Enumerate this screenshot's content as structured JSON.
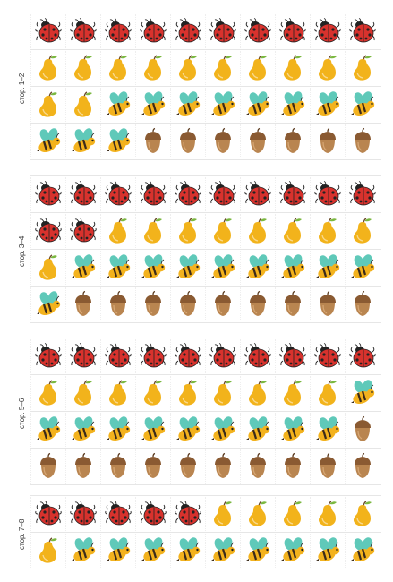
{
  "colors": {
    "ladybug": "#d8322d",
    "pear": "#f2b31b",
    "bee_body": "#f3b21d",
    "bee_wing": "#5fc9b9",
    "acorn": "#b98550",
    "acorn_cap": "#8a5a32"
  },
  "blocks": [
    {
      "label": "стор. 1–2",
      "rows": [
        [
          "ladybug-icon",
          "ladybug-icon",
          "ladybug-icon",
          "ladybug-icon",
          "ladybug-icon",
          "ladybug-icon",
          "ladybug-icon",
          "ladybug-icon",
          "ladybug-icon",
          "ladybug-icon"
        ],
        [
          "pear-icon",
          "pear-icon",
          "pear-icon",
          "pear-icon",
          "pear-icon",
          "pear-icon",
          "pear-icon",
          "pear-icon",
          "pear-icon",
          "pear-icon"
        ],
        [
          "pear-icon",
          "pear-icon",
          "bee-icon",
          "bee-icon",
          "bee-icon",
          "bee-icon",
          "bee-icon",
          "bee-icon",
          "bee-icon",
          "bee-icon"
        ],
        [
          "bee-icon",
          "bee-icon",
          "bee-icon",
          "acorn-icon",
          "acorn-icon",
          "acorn-icon",
          "acorn-icon",
          "acorn-icon",
          "acorn-icon",
          "acorn-icon"
        ]
      ]
    },
    {
      "label": "стор. 3–4",
      "rows": [
        [
          "ladybug-icon",
          "ladybug-icon",
          "ladybug-icon",
          "ladybug-icon",
          "ladybug-icon",
          "ladybug-icon",
          "ladybug-icon",
          "ladybug-icon",
          "ladybug-icon",
          "ladybug-icon"
        ],
        [
          "ladybug-icon",
          "ladybug-icon",
          "pear-icon",
          "pear-icon",
          "pear-icon",
          "pear-icon",
          "pear-icon",
          "pear-icon",
          "pear-icon",
          "pear-icon"
        ],
        [
          "pear-icon",
          "bee-icon",
          "bee-icon",
          "bee-icon",
          "bee-icon",
          "bee-icon",
          "bee-icon",
          "bee-icon",
          "bee-icon",
          "bee-icon"
        ],
        [
          "bee-icon",
          "acorn-icon",
          "acorn-icon",
          "acorn-icon",
          "acorn-icon",
          "acorn-icon",
          "acorn-icon",
          "acorn-icon",
          "acorn-icon",
          "acorn-icon"
        ]
      ]
    },
    {
      "label": "стор. 5–6",
      "rows": [
        [
          "ladybug-icon",
          "ladybug-icon",
          "ladybug-icon",
          "ladybug-icon",
          "ladybug-icon",
          "ladybug-icon",
          "ladybug-icon",
          "ladybug-icon",
          "ladybug-icon",
          "ladybug-icon"
        ],
        [
          "pear-icon",
          "pear-icon",
          "pear-icon",
          "pear-icon",
          "pear-icon",
          "pear-icon",
          "pear-icon",
          "pear-icon",
          "pear-icon",
          "bee-icon"
        ],
        [
          "bee-icon",
          "bee-icon",
          "bee-icon",
          "bee-icon",
          "bee-icon",
          "bee-icon",
          "bee-icon",
          "bee-icon",
          "bee-icon",
          "acorn-icon"
        ],
        [
          "acorn-icon",
          "acorn-icon",
          "acorn-icon",
          "acorn-icon",
          "acorn-icon",
          "acorn-icon",
          "acorn-icon",
          "acorn-icon",
          "acorn-icon",
          "acorn-icon"
        ]
      ]
    },
    {
      "label": "стор. 7–8",
      "rows": [
        [
          "ladybug-icon",
          "ladybug-icon",
          "ladybug-icon",
          "ladybug-icon",
          "ladybug-icon",
          "pear-icon",
          "pear-icon",
          "pear-icon",
          "pear-icon",
          "pear-icon"
        ],
        [
          "pear-icon",
          "bee-icon",
          "bee-icon",
          "bee-icon",
          "bee-icon",
          "bee-icon",
          "bee-icon",
          "bee-icon",
          "bee-icon",
          "bee-icon"
        ]
      ]
    }
  ]
}
